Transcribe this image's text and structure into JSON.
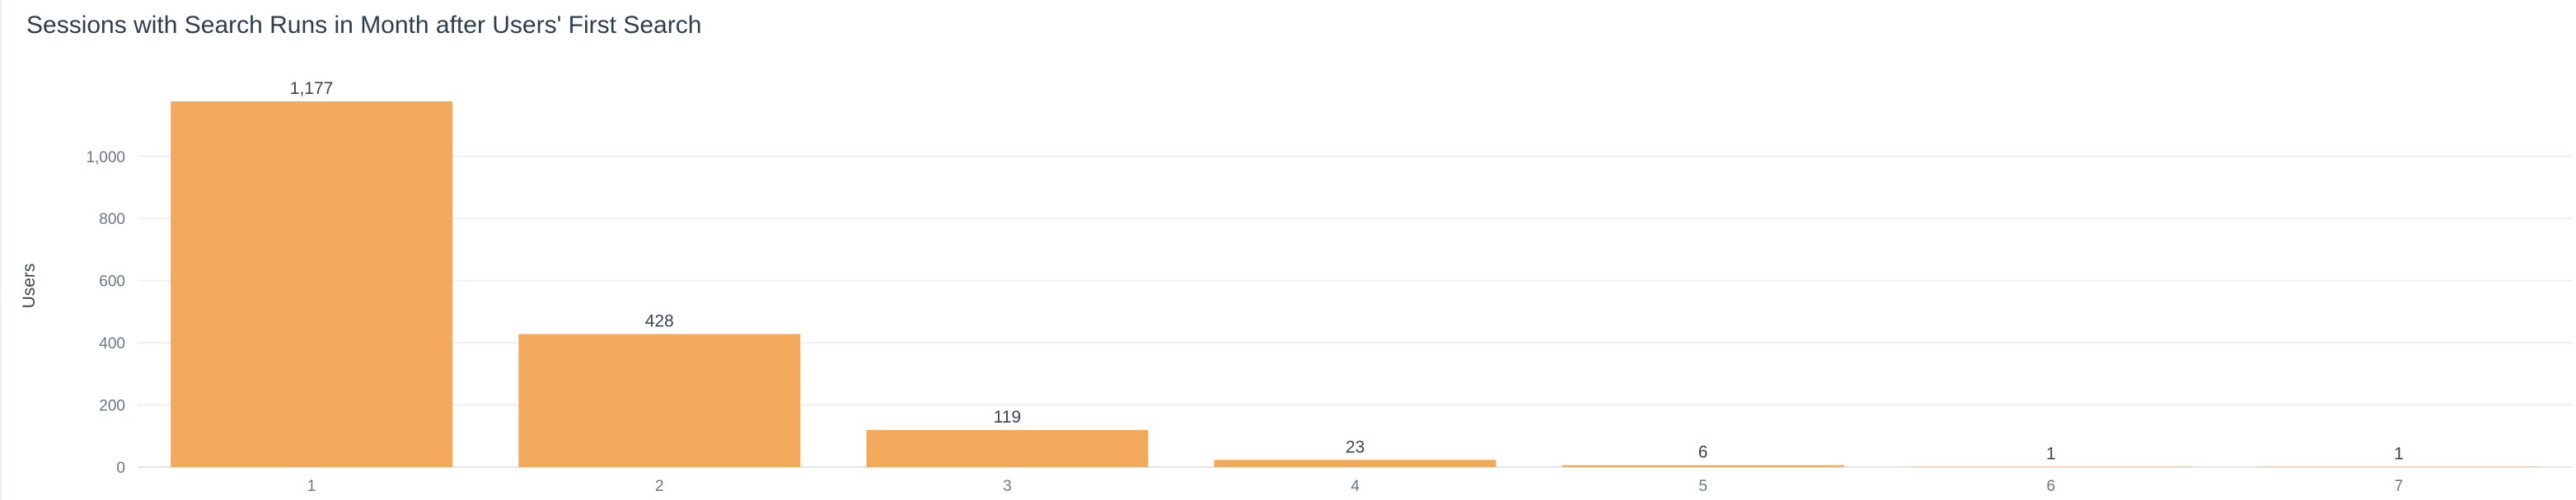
{
  "chart_data": {
    "type": "bar",
    "title": "Sessions with Search Runs in Month after Users' First Search",
    "xlabel": "",
    "ylabel": "Users",
    "categories": [
      "1",
      "2",
      "3",
      "4",
      "5",
      "6",
      "7"
    ],
    "values": [
      1177,
      428,
      119,
      23,
      6,
      1,
      1
    ],
    "value_labels": [
      "1,177",
      "428",
      "119",
      "23",
      "6",
      "1",
      "1"
    ],
    "yticks": [
      0,
      200,
      400,
      600,
      800,
      1000
    ],
    "ytick_labels": [
      "0",
      "200",
      "400",
      "600",
      "800",
      "1,000"
    ],
    "ylim": [
      0,
      1177
    ],
    "grid": true,
    "bar_color": "#f2a95b"
  }
}
